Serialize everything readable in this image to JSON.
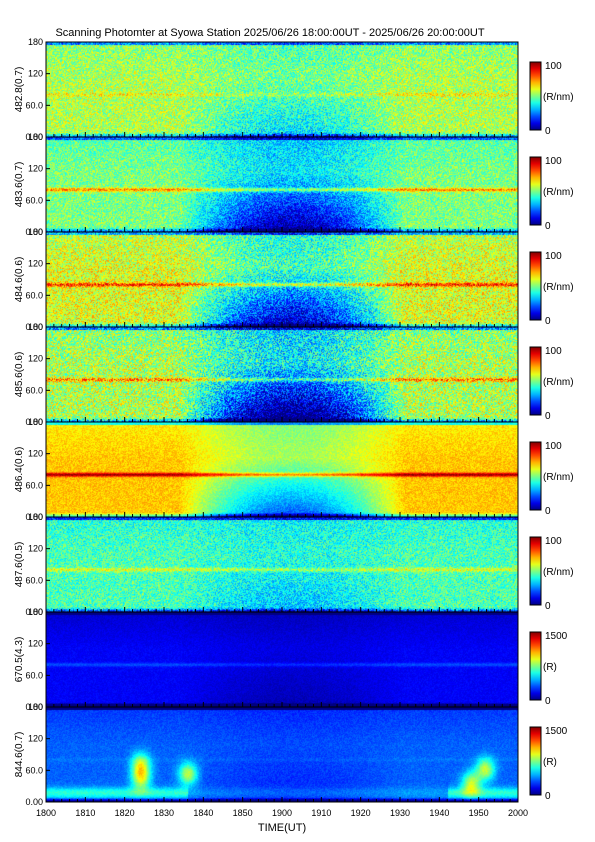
{
  "chart_data": {
    "type": "heatmap",
    "title": "Scanning Photomter at Syowa Station 2025/06/26 18:00:00UT - 2025/06/26 20:00:00UT",
    "xlabel": "TIME(UT)",
    "x_ticks": [
      "1800",
      "1810",
      "1820",
      "1830",
      "1840",
      "1850",
      "1900",
      "1910",
      "1920",
      "1930",
      "1940",
      "1950",
      "2000"
    ],
    "y_ticks": [
      "0.00",
      "60.0",
      "120",
      "180"
    ],
    "ylim": [
      0,
      180
    ],
    "panels": [
      {
        "ylabel": "482.8(0.7)",
        "units": "(R/nm)",
        "cmin": "0",
        "cmax": "100",
        "base": 0.55,
        "dip": 0.15,
        "line": 0.08,
        "noise": 0.25,
        "arcs": false
      },
      {
        "ylabel": "483.6(0.7)",
        "units": "(R/nm)",
        "cmin": "0",
        "cmax": "100",
        "base": 0.5,
        "dip": 0.35,
        "line": 0.25,
        "noise": 0.22,
        "arcs": false
      },
      {
        "ylabel": "484.6(0.6)",
        "units": "(R/nm)",
        "cmin": "0",
        "cmax": "100",
        "base": 0.6,
        "dip": 0.4,
        "line": 0.25,
        "noise": 0.28,
        "arcs": false
      },
      {
        "ylabel": "485.6(0.6)",
        "units": "(R/nm)",
        "cmin": "0",
        "cmax": "100",
        "base": 0.55,
        "dip": 0.45,
        "line": 0.2,
        "noise": 0.32,
        "arcs": false
      },
      {
        "ylabel": "486.4(0.6)",
        "units": "(R/nm)",
        "cmin": "0",
        "cmax": "100",
        "base": 0.68,
        "dip": 0.35,
        "line": 0.3,
        "noise": 0.1,
        "arcs": false
      },
      {
        "ylabel": "487.6(0.5)",
        "units": "(R/nm)",
        "cmin": "0",
        "cmax": "100",
        "base": 0.45,
        "dip": 0.1,
        "line": 0.15,
        "noise": 0.22,
        "arcs": false
      },
      {
        "ylabel": "670.5(4.3)",
        "units": "(R)",
        "cmin": "0",
        "cmax": "1500",
        "base": 0.12,
        "dip": 0.05,
        "line": 0.08,
        "noise": 0.05,
        "arcs": false
      },
      {
        "ylabel": "844.6(0.7)",
        "units": "(R)",
        "cmin": "0",
        "cmax": "1500",
        "base": 0.22,
        "dip": 0.05,
        "line": 0.02,
        "noise": 0.06,
        "arcs": true
      }
    ],
    "grid": false
  }
}
